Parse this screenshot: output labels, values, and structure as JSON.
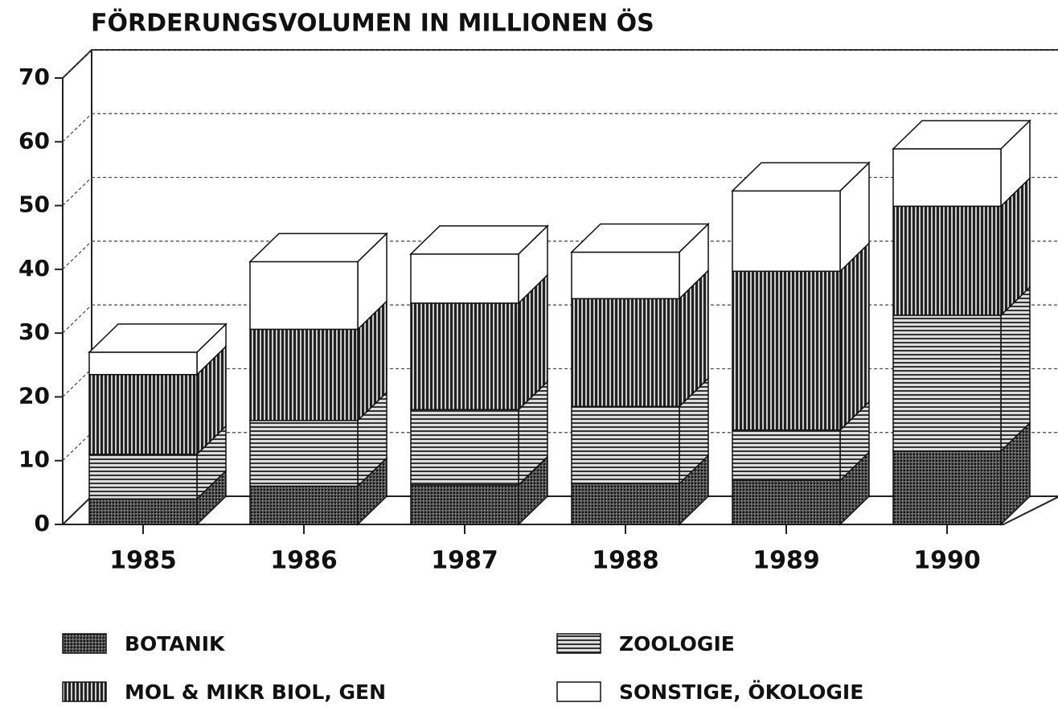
{
  "chart_data": {
    "type": "bar3d_stacked",
    "title": "FÖRDERUNGSVOLUMEN IN MILLIONEN ÖS",
    "categories": [
      "1985",
      "1986",
      "1987",
      "1988",
      "1989",
      "1990"
    ],
    "series": [
      {
        "name": "BOTANIK",
        "color": "#333333",
        "pattern": "dots",
        "values": [
          4,
          6,
          6.2,
          6.4,
          6.9,
          11.5
        ]
      },
      {
        "name": "ZOOLOGIE",
        "color": "#444444",
        "pattern": "horizontal",
        "values": [
          7,
          10.3,
          11.8,
          12.1,
          7.9,
          21.3
        ]
      },
      {
        "name": "MOL & MIKR BIOL, GEN",
        "color": "#222222",
        "pattern": "vertical",
        "values": [
          12.5,
          14.3,
          16.7,
          16.9,
          24.9,
          17.1
        ]
      },
      {
        "name": "SONSTIGE, ÖKOLOGIE",
        "color": "#ffffff",
        "pattern": "none",
        "values": [
          3.5,
          10.6,
          7.7,
          7.3,
          12.6,
          9
        ]
      }
    ],
    "ylim": [
      0,
      70
    ],
    "yticks": [
      0,
      10,
      20,
      30,
      40,
      50,
      60,
      70
    ],
    "grid": true
  }
}
